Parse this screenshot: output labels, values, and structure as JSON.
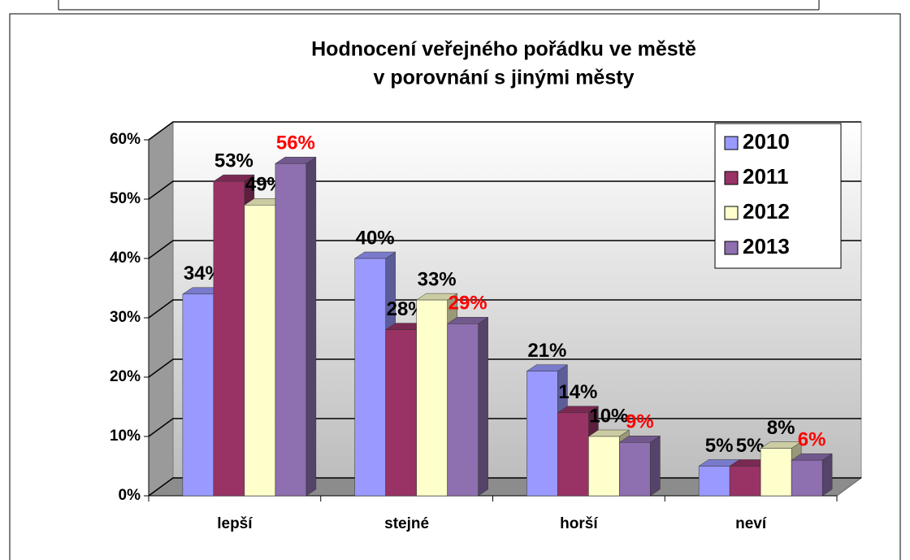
{
  "chart_data": {
    "type": "bar3d",
    "title": [
      "Hodnocení veřejného pořádku ve městě",
      "v porovnání s jinými městy"
    ],
    "categories": [
      "lepší",
      "stejné",
      "horší",
      "neví"
    ],
    "series": [
      {
        "name": "2010",
        "color": "#9999ff",
        "label_color": "#000000",
        "values": [
          34,
          40,
          21,
          5
        ],
        "value_labels": [
          "34%",
          "40%",
          "21%",
          "5%"
        ]
      },
      {
        "name": "2011",
        "color": "#993366",
        "label_color": "#000000",
        "values": [
          53,
          28,
          14,
          5
        ],
        "value_labels": [
          "53%",
          "28%",
          "14%",
          "5%"
        ]
      },
      {
        "name": "2012",
        "color": "#ffffcc",
        "label_color": "#000000",
        "values": [
          49,
          33,
          10,
          8
        ],
        "value_labels": [
          "49%",
          "33%",
          "10%",
          "8%"
        ]
      },
      {
        "name": "2013",
        "color": "#8e6fb0",
        "label_color": "#ff0000",
        "values": [
          56,
          29,
          9,
          6
        ],
        "value_labels": [
          "56%",
          "29%",
          "9%",
          "6%"
        ]
      }
    ],
    "ylim": [
      0,
      60
    ],
    "yticks": [
      {
        "value": 0,
        "label": "0%"
      },
      {
        "value": 10,
        "label": "10%"
      },
      {
        "value": 20,
        "label": "20%"
      },
      {
        "value": 30,
        "label": "30%"
      },
      {
        "value": 40,
        "label": "40%"
      },
      {
        "value": 50,
        "label": "50%"
      },
      {
        "value": 60,
        "label": "60%"
      }
    ],
    "grid": true,
    "legend": "top-right"
  }
}
